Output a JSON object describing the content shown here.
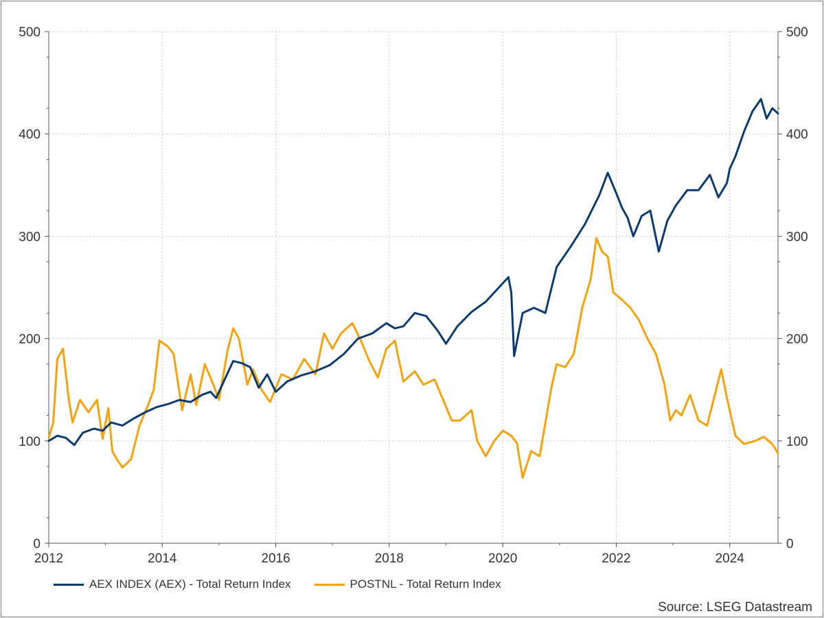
{
  "colors": {
    "aex": "#0b3a6e",
    "postnl": "#f5a20c",
    "grid": "#c8c8c8",
    "axis": "#555555"
  },
  "source": "Source: LSEG Datastream",
  "chart_data": {
    "type": "line",
    "title": "",
    "xlabel": "",
    "ylabel": "",
    "xlim": [
      2012,
      2024.85
    ],
    "ylim": [
      0,
      500
    ],
    "x_ticks": [
      "2012",
      "2014",
      "2016",
      "2018",
      "2020",
      "2022",
      "2024"
    ],
    "y_ticks": [
      "0",
      "100",
      "200",
      "300",
      "400",
      "500"
    ],
    "y_ticks_right": [
      "0",
      "100",
      "200",
      "300",
      "400",
      "500"
    ],
    "grid": true,
    "legend_position": "bottom-left",
    "series": [
      {
        "name": "AEX INDEX (AEX) - Total Return Index",
        "color": "#0b3a6e",
        "points": [
          [
            2012.0,
            100
          ],
          [
            2012.15,
            105
          ],
          [
            2012.3,
            103
          ],
          [
            2012.45,
            96
          ],
          [
            2012.6,
            108
          ],
          [
            2012.8,
            112
          ],
          [
            2012.95,
            110
          ],
          [
            2013.1,
            118
          ],
          [
            2013.3,
            115
          ],
          [
            2013.5,
            122
          ],
          [
            2013.7,
            128
          ],
          [
            2013.9,
            133
          ],
          [
            2014.1,
            136
          ],
          [
            2014.3,
            140
          ],
          [
            2014.5,
            138
          ],
          [
            2014.7,
            145
          ],
          [
            2014.85,
            148
          ],
          [
            2014.95,
            142
          ],
          [
            2015.1,
            160
          ],
          [
            2015.25,
            178
          ],
          [
            2015.4,
            176
          ],
          [
            2015.55,
            172
          ],
          [
            2015.7,
            152
          ],
          [
            2015.85,
            165
          ],
          [
            2016.0,
            148
          ],
          [
            2016.2,
            158
          ],
          [
            2016.45,
            164
          ],
          [
            2016.7,
            168
          ],
          [
            2016.95,
            174
          ],
          [
            2017.2,
            185
          ],
          [
            2017.45,
            200
          ],
          [
            2017.7,
            205
          ],
          [
            2017.95,
            215
          ],
          [
            2018.1,
            210
          ],
          [
            2018.25,
            212
          ],
          [
            2018.45,
            225
          ],
          [
            2018.65,
            222
          ],
          [
            2018.85,
            208
          ],
          [
            2019.0,
            195
          ],
          [
            2019.2,
            212
          ],
          [
            2019.45,
            226
          ],
          [
            2019.7,
            236
          ],
          [
            2019.9,
            248
          ],
          [
            2020.1,
            260
          ],
          [
            2020.15,
            245
          ],
          [
            2020.2,
            183
          ],
          [
            2020.35,
            225
          ],
          [
            2020.55,
            230
          ],
          [
            2020.75,
            225
          ],
          [
            2020.95,
            270
          ],
          [
            2021.2,
            290
          ],
          [
            2021.45,
            312
          ],
          [
            2021.7,
            340
          ],
          [
            2021.85,
            362
          ],
          [
            2022.0,
            342
          ],
          [
            2022.1,
            328
          ],
          [
            2022.2,
            318
          ],
          [
            2022.3,
            300
          ],
          [
            2022.45,
            320
          ],
          [
            2022.6,
            325
          ],
          [
            2022.75,
            285
          ],
          [
            2022.9,
            315
          ],
          [
            2023.05,
            330
          ],
          [
            2023.25,
            345
          ],
          [
            2023.45,
            345
          ],
          [
            2023.65,
            360
          ],
          [
            2023.8,
            338
          ],
          [
            2023.95,
            352
          ],
          [
            2024.0,
            366
          ],
          [
            2024.1,
            378
          ],
          [
            2024.25,
            402
          ],
          [
            2024.4,
            422
          ],
          [
            2024.55,
            434
          ],
          [
            2024.65,
            415
          ],
          [
            2024.75,
            425
          ],
          [
            2024.85,
            420
          ]
        ]
      },
      {
        "name": "POSTNL - Total Return Index",
        "color": "#f5a20c",
        "points": [
          [
            2012.0,
            103
          ],
          [
            2012.08,
            118
          ],
          [
            2012.15,
            180
          ],
          [
            2012.25,
            190
          ],
          [
            2012.35,
            142
          ],
          [
            2012.42,
            118
          ],
          [
            2012.55,
            140
          ],
          [
            2012.7,
            128
          ],
          [
            2012.85,
            140
          ],
          [
            2012.95,
            102
          ],
          [
            2013.05,
            132
          ],
          [
            2013.12,
            90
          ],
          [
            2013.2,
            82
          ],
          [
            2013.3,
            74
          ],
          [
            2013.45,
            82
          ],
          [
            2013.6,
            115
          ],
          [
            2013.75,
            135
          ],
          [
            2013.85,
            150
          ],
          [
            2013.95,
            198
          ],
          [
            2014.1,
            192
          ],
          [
            2014.2,
            185
          ],
          [
            2014.35,
            130
          ],
          [
            2014.5,
            165
          ],
          [
            2014.6,
            135
          ],
          [
            2014.75,
            175
          ],
          [
            2014.9,
            155
          ],
          [
            2015.0,
            140
          ],
          [
            2015.15,
            188
          ],
          [
            2015.25,
            210
          ],
          [
            2015.35,
            200
          ],
          [
            2015.5,
            155
          ],
          [
            2015.6,
            170
          ],
          [
            2015.75,
            150
          ],
          [
            2015.9,
            138
          ],
          [
            2016.1,
            165
          ],
          [
            2016.3,
            160
          ],
          [
            2016.5,
            180
          ],
          [
            2016.7,
            165
          ],
          [
            2016.85,
            205
          ],
          [
            2017.0,
            190
          ],
          [
            2017.15,
            205
          ],
          [
            2017.35,
            215
          ],
          [
            2017.5,
            198
          ],
          [
            2017.65,
            178
          ],
          [
            2017.8,
            162
          ],
          [
            2017.95,
            190
          ],
          [
            2018.1,
            198
          ],
          [
            2018.25,
            158
          ],
          [
            2018.45,
            168
          ],
          [
            2018.6,
            155
          ],
          [
            2018.8,
            160
          ],
          [
            2018.95,
            140
          ],
          [
            2019.1,
            120
          ],
          [
            2019.25,
            120
          ],
          [
            2019.45,
            130
          ],
          [
            2019.55,
            100
          ],
          [
            2019.7,
            85
          ],
          [
            2019.85,
            100
          ],
          [
            2020.0,
            110
          ],
          [
            2020.15,
            105
          ],
          [
            2020.25,
            98
          ],
          [
            2020.35,
            64
          ],
          [
            2020.5,
            90
          ],
          [
            2020.65,
            85
          ],
          [
            2020.85,
            150
          ],
          [
            2020.95,
            175
          ],
          [
            2021.1,
            172
          ],
          [
            2021.25,
            185
          ],
          [
            2021.4,
            230
          ],
          [
            2021.55,
            258
          ],
          [
            2021.65,
            298
          ],
          [
            2021.75,
            285
          ],
          [
            2021.85,
            280
          ],
          [
            2021.95,
            245
          ],
          [
            2022.1,
            238
          ],
          [
            2022.25,
            230
          ],
          [
            2022.4,
            218
          ],
          [
            2022.55,
            200
          ],
          [
            2022.7,
            185
          ],
          [
            2022.85,
            155
          ],
          [
            2022.95,
            120
          ],
          [
            2023.05,
            130
          ],
          [
            2023.15,
            125
          ],
          [
            2023.3,
            145
          ],
          [
            2023.45,
            120
          ],
          [
            2023.6,
            115
          ],
          [
            2023.75,
            148
          ],
          [
            2023.85,
            170
          ],
          [
            2023.95,
            142
          ],
          [
            2024.1,
            105
          ],
          [
            2024.25,
            97
          ],
          [
            2024.45,
            100
          ],
          [
            2024.6,
            104
          ],
          [
            2024.75,
            97
          ],
          [
            2024.85,
            88
          ]
        ]
      }
    ]
  }
}
